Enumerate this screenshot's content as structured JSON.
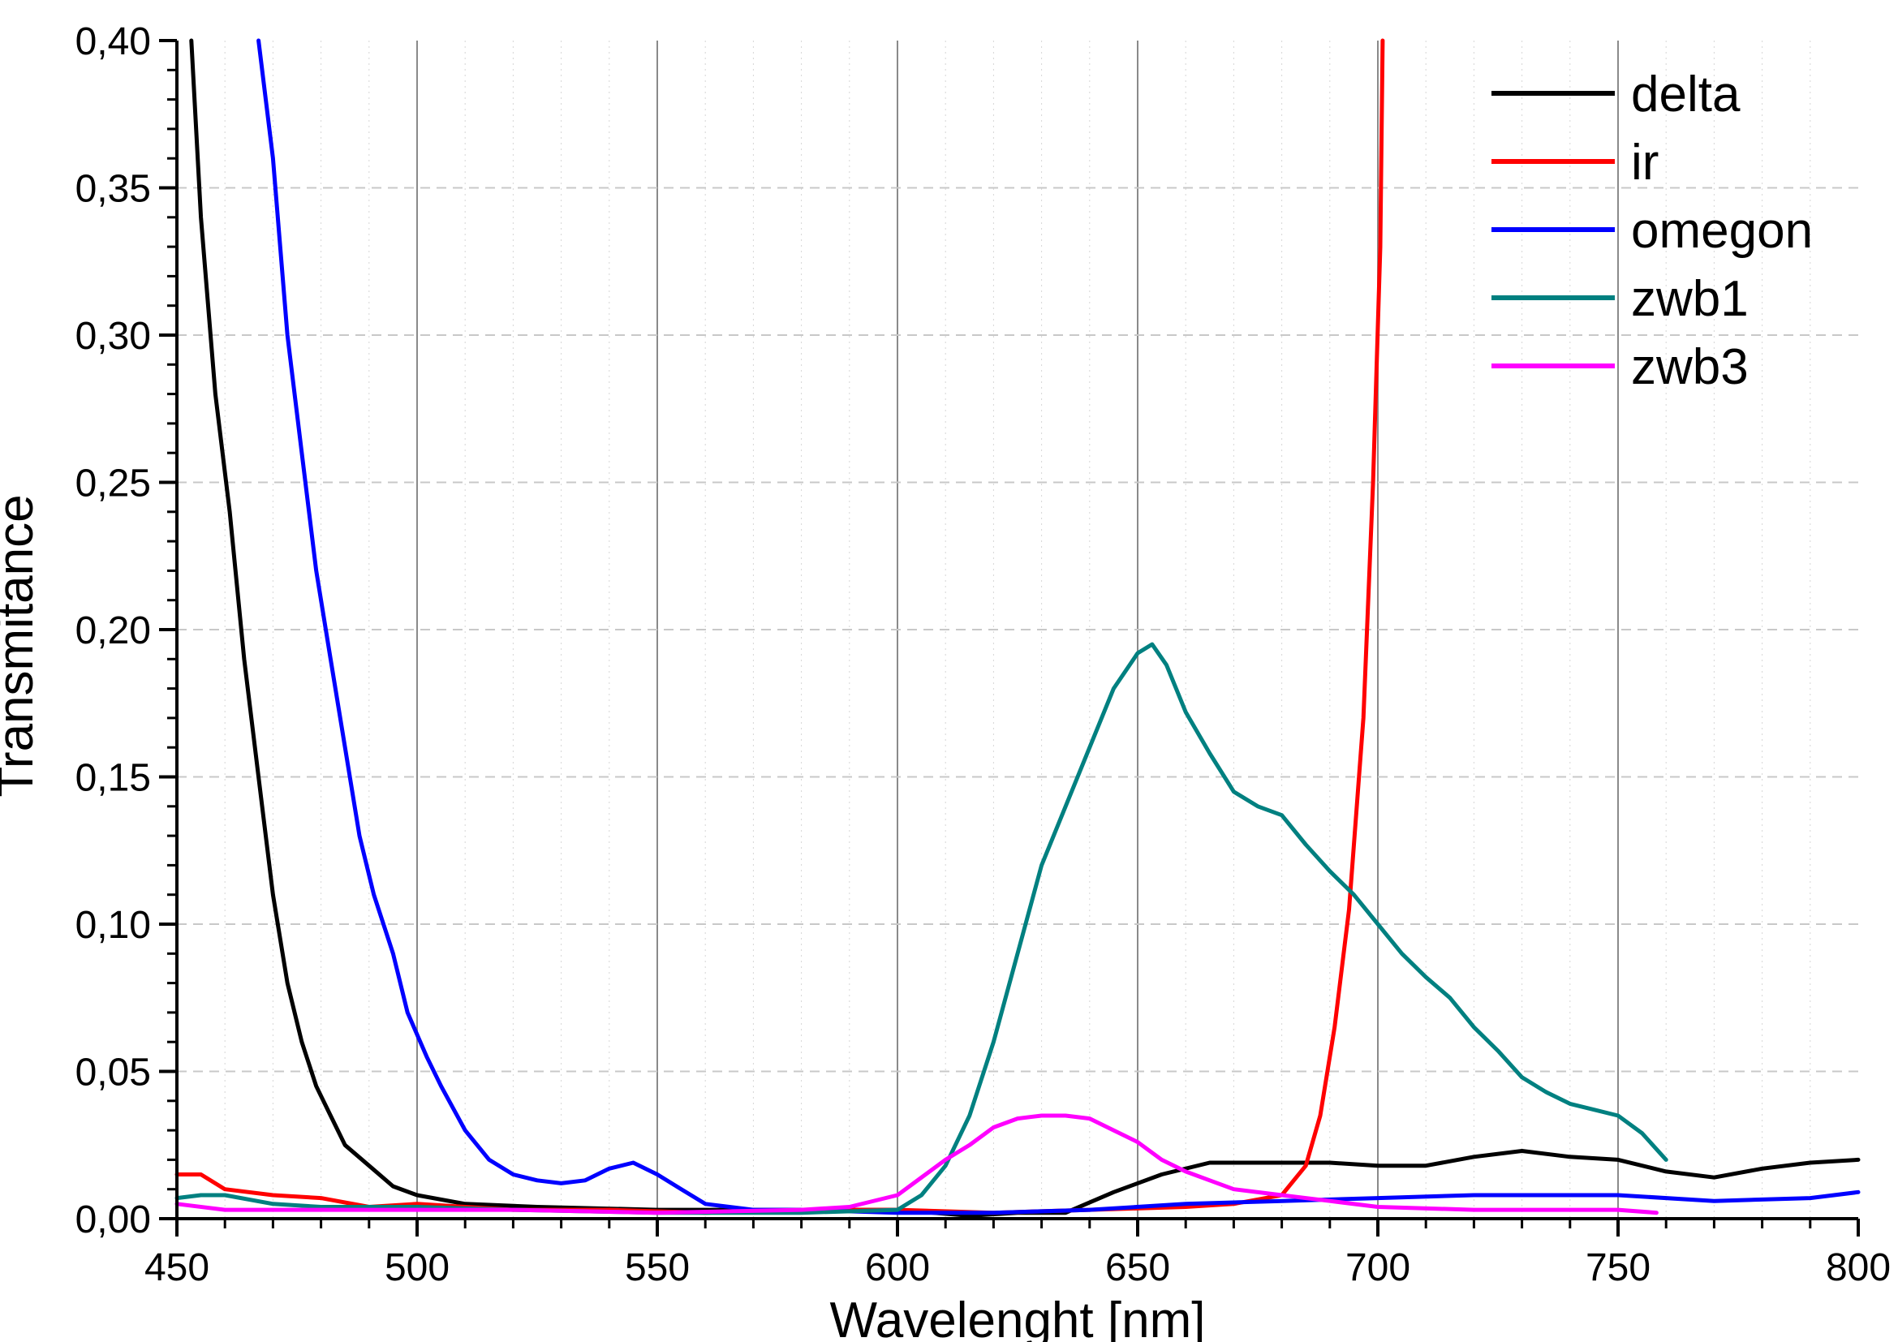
{
  "chart_data": {
    "type": "line",
    "title": "",
    "xlabel": "Wavelenght [nm]",
    "ylabel": "Transmitance",
    "xlim": [
      450,
      800
    ],
    "ylim": [
      0,
      0.4
    ],
    "x_major_ticks": [
      450,
      500,
      550,
      600,
      650,
      700,
      750,
      800
    ],
    "x_tick_labels": [
      "450",
      "500",
      "550",
      "600",
      "650",
      "700",
      "750",
      "800"
    ],
    "y_major_ticks": [
      0,
      0.05,
      0.1,
      0.15,
      0.2,
      0.25,
      0.3,
      0.35,
      0.4
    ],
    "y_tick_labels": [
      "0,00",
      "0,05",
      "0,10",
      "0,15",
      "0,20",
      "0,25",
      "0,30",
      "0,35",
      "0,40"
    ],
    "grid": {
      "vertical_major": "solid gray",
      "horizontal_major": "dashed light gray",
      "vertical_minor": "dotted light gray"
    },
    "legend_position": "top-right",
    "series": [
      {
        "name": "delta",
        "color": "#000000",
        "points": [
          [
            453,
            0.4
          ],
          [
            455,
            0.34
          ],
          [
            458,
            0.28
          ],
          [
            461,
            0.24
          ],
          [
            464,
            0.19
          ],
          [
            467,
            0.15
          ],
          [
            470,
            0.11
          ],
          [
            473,
            0.08
          ],
          [
            476,
            0.06
          ],
          [
            479,
            0.045
          ],
          [
            482,
            0.035
          ],
          [
            485,
            0.025
          ],
          [
            490,
            0.018
          ],
          [
            495,
            0.011
          ],
          [
            500,
            0.008
          ],
          [
            510,
            0.005
          ],
          [
            525,
            0.004
          ],
          [
            550,
            0.003
          ],
          [
            575,
            0.003
          ],
          [
            600,
            0.003
          ],
          [
            615,
            0.001
          ],
          [
            625,
            0.002
          ],
          [
            635,
            0.002
          ],
          [
            645,
            0.009
          ],
          [
            655,
            0.015
          ],
          [
            665,
            0.019
          ],
          [
            675,
            0.019
          ],
          [
            690,
            0.019
          ],
          [
            700,
            0.018
          ],
          [
            710,
            0.018
          ],
          [
            720,
            0.021
          ],
          [
            730,
            0.023
          ],
          [
            740,
            0.021
          ],
          [
            750,
            0.02
          ],
          [
            760,
            0.016
          ],
          [
            770,
            0.014
          ],
          [
            780,
            0.017
          ],
          [
            790,
            0.019
          ],
          [
            800,
            0.02
          ]
        ]
      },
      {
        "name": "ir",
        "color": "#ff0000",
        "points": [
          [
            450,
            0.015
          ],
          [
            455,
            0.015
          ],
          [
            460,
            0.01
          ],
          [
            470,
            0.008
          ],
          [
            480,
            0.007
          ],
          [
            490,
            0.004
          ],
          [
            500,
            0.005
          ],
          [
            510,
            0.004
          ],
          [
            520,
            0.003
          ],
          [
            540,
            0.003
          ],
          [
            560,
            0.002
          ],
          [
            580,
            0.003
          ],
          [
            600,
            0.003
          ],
          [
            620,
            0.002
          ],
          [
            640,
            0.003
          ],
          [
            660,
            0.004
          ],
          [
            670,
            0.005
          ],
          [
            680,
            0.008
          ],
          [
            685,
            0.018
          ],
          [
            688,
            0.035
          ],
          [
            691,
            0.065
          ],
          [
            694,
            0.105
          ],
          [
            697,
            0.17
          ],
          [
            699,
            0.25
          ],
          [
            700.5,
            0.33
          ],
          [
            701,
            0.4
          ]
        ]
      },
      {
        "name": "omegon",
        "color": "#0000ff",
        "points": [
          [
            467,
            0.4
          ],
          [
            470,
            0.36
          ],
          [
            473,
            0.3
          ],
          [
            476,
            0.26
          ],
          [
            479,
            0.22
          ],
          [
            482,
            0.19
          ],
          [
            485,
            0.16
          ],
          [
            488,
            0.13
          ],
          [
            491,
            0.11
          ],
          [
            495,
            0.09
          ],
          [
            498,
            0.07
          ],
          [
            502,
            0.055
          ],
          [
            505,
            0.045
          ],
          [
            510,
            0.03
          ],
          [
            515,
            0.02
          ],
          [
            520,
            0.015
          ],
          [
            525,
            0.013
          ],
          [
            530,
            0.012
          ],
          [
            535,
            0.013
          ],
          [
            540,
            0.017
          ],
          [
            545,
            0.019
          ],
          [
            550,
            0.015
          ],
          [
            555,
            0.01
          ],
          [
            560,
            0.005
          ],
          [
            570,
            0.003
          ],
          [
            580,
            0.003
          ],
          [
            600,
            0.002
          ],
          [
            620,
            0.002
          ],
          [
            640,
            0.003
          ],
          [
            660,
            0.005
          ],
          [
            680,
            0.006
          ],
          [
            700,
            0.007
          ],
          [
            720,
            0.008
          ],
          [
            750,
            0.008
          ],
          [
            770,
            0.006
          ],
          [
            790,
            0.007
          ],
          [
            800,
            0.009
          ]
        ]
      },
      {
        "name": "zwb1",
        "color": "#008080",
        "points": [
          [
            450,
            0.007
          ],
          [
            455,
            0.008
          ],
          [
            460,
            0.008
          ],
          [
            470,
            0.005
          ],
          [
            480,
            0.004
          ],
          [
            500,
            0.004
          ],
          [
            520,
            0.003
          ],
          [
            550,
            0.002
          ],
          [
            580,
            0.002
          ],
          [
            600,
            0.003
          ],
          [
            605,
            0.008
          ],
          [
            610,
            0.018
          ],
          [
            615,
            0.035
          ],
          [
            620,
            0.06
          ],
          [
            625,
            0.09
          ],
          [
            630,
            0.12
          ],
          [
            635,
            0.14
          ],
          [
            640,
            0.16
          ],
          [
            645,
            0.18
          ],
          [
            650,
            0.192
          ],
          [
            653,
            0.195
          ],
          [
            656,
            0.188
          ],
          [
            660,
            0.172
          ],
          [
            665,
            0.158
          ],
          [
            670,
            0.145
          ],
          [
            675,
            0.14
          ],
          [
            680,
            0.137
          ],
          [
            685,
            0.127
          ],
          [
            690,
            0.118
          ],
          [
            695,
            0.11
          ],
          [
            700,
            0.1
          ],
          [
            705,
            0.09
          ],
          [
            710,
            0.082
          ],
          [
            715,
            0.075
          ],
          [
            720,
            0.065
          ],
          [
            725,
            0.057
          ],
          [
            730,
            0.048
          ],
          [
            735,
            0.043
          ],
          [
            740,
            0.039
          ],
          [
            745,
            0.037
          ],
          [
            750,
            0.035
          ],
          [
            755,
            0.029
          ],
          [
            760,
            0.02
          ]
        ]
      },
      {
        "name": "zwb3",
        "color": "#ff00ff",
        "points": [
          [
            450,
            0.005
          ],
          [
            460,
            0.003
          ],
          [
            470,
            0.003
          ],
          [
            480,
            0.003
          ],
          [
            500,
            0.003
          ],
          [
            520,
            0.003
          ],
          [
            550,
            0.002
          ],
          [
            580,
            0.003
          ],
          [
            590,
            0.004
          ],
          [
            600,
            0.008
          ],
          [
            605,
            0.014
          ],
          [
            610,
            0.02
          ],
          [
            615,
            0.025
          ],
          [
            620,
            0.031
          ],
          [
            625,
            0.034
          ],
          [
            630,
            0.035
          ],
          [
            635,
            0.035
          ],
          [
            640,
            0.034
          ],
          [
            645,
            0.03
          ],
          [
            650,
            0.026
          ],
          [
            655,
            0.02
          ],
          [
            660,
            0.016
          ],
          [
            665,
            0.013
          ],
          [
            670,
            0.01
          ],
          [
            680,
            0.008
          ],
          [
            690,
            0.006
          ],
          [
            700,
            0.004
          ],
          [
            720,
            0.003
          ],
          [
            740,
            0.003
          ],
          [
            750,
            0.003
          ],
          [
            758,
            0.002
          ]
        ]
      }
    ]
  }
}
